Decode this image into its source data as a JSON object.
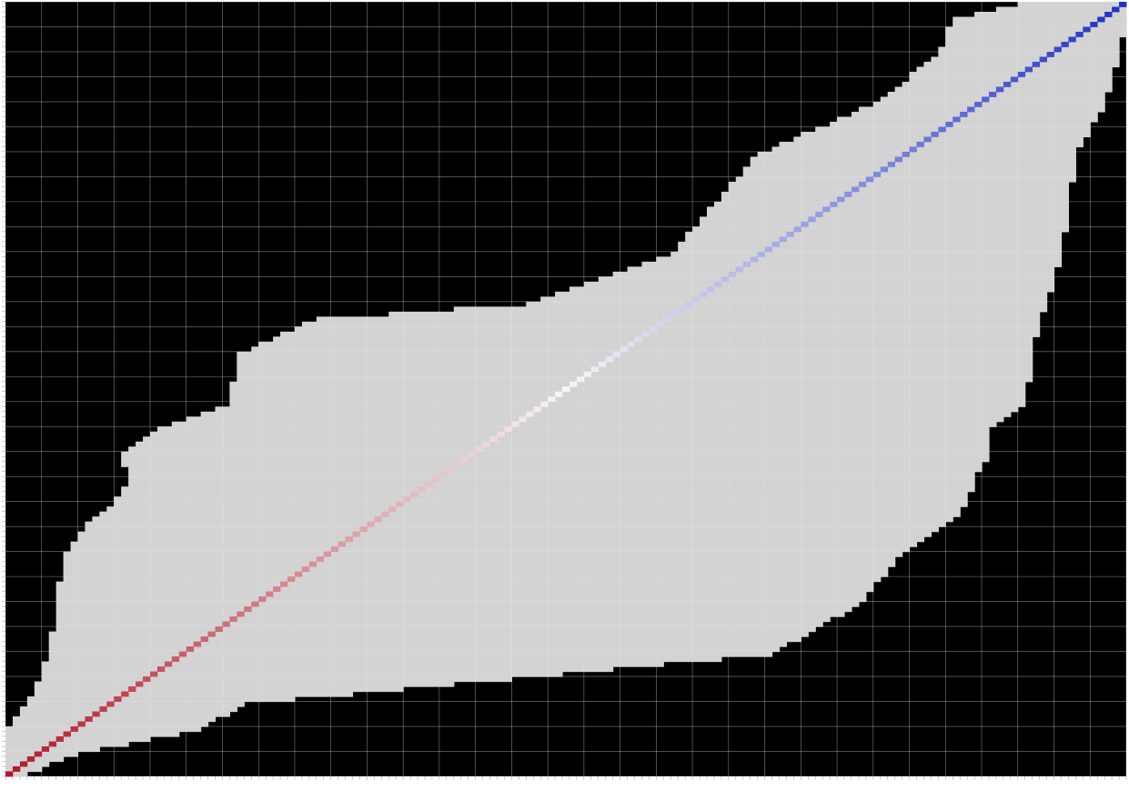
{
  "chart_data": {
    "type": "heatmap",
    "title": "",
    "xlabel": "",
    "ylabel": "",
    "grid": true,
    "legend": "none",
    "n_cells": 155,
    "colors": {
      "masked": "#000000",
      "neutral": "#d3d3d3",
      "gridline": "#e6e6e6",
      "diag_low": "#b2182b",
      "diag_mid": "#f7f7f7",
      "diag_high": "#2130c8"
    },
    "diagonal": {
      "from_value": 1.0,
      "to_value": -1.0
    },
    "visible_band_by_row": {
      "row": [
        0,
        3,
        10,
        20,
        30,
        50,
        60,
        63,
        70,
        80,
        85,
        90,
        95,
        100,
        103,
        110,
        120,
        130,
        140,
        145,
        150,
        155
      ],
      "col_from": [
        140,
        131,
        129,
        120,
        104,
        92,
        72,
        43,
        32,
        31,
        21,
        16,
        17,
        15,
        12,
        8,
        7,
        6,
        3,
        0,
        0,
        0
      ],
      "col_to": [
        155,
        155,
        154,
        152,
        148,
        146,
        144,
        143,
        142,
        141,
        136,
        136,
        134,
        133,
        131,
        124,
        118,
        106,
        33,
        27,
        10,
        1
      ]
    }
  }
}
